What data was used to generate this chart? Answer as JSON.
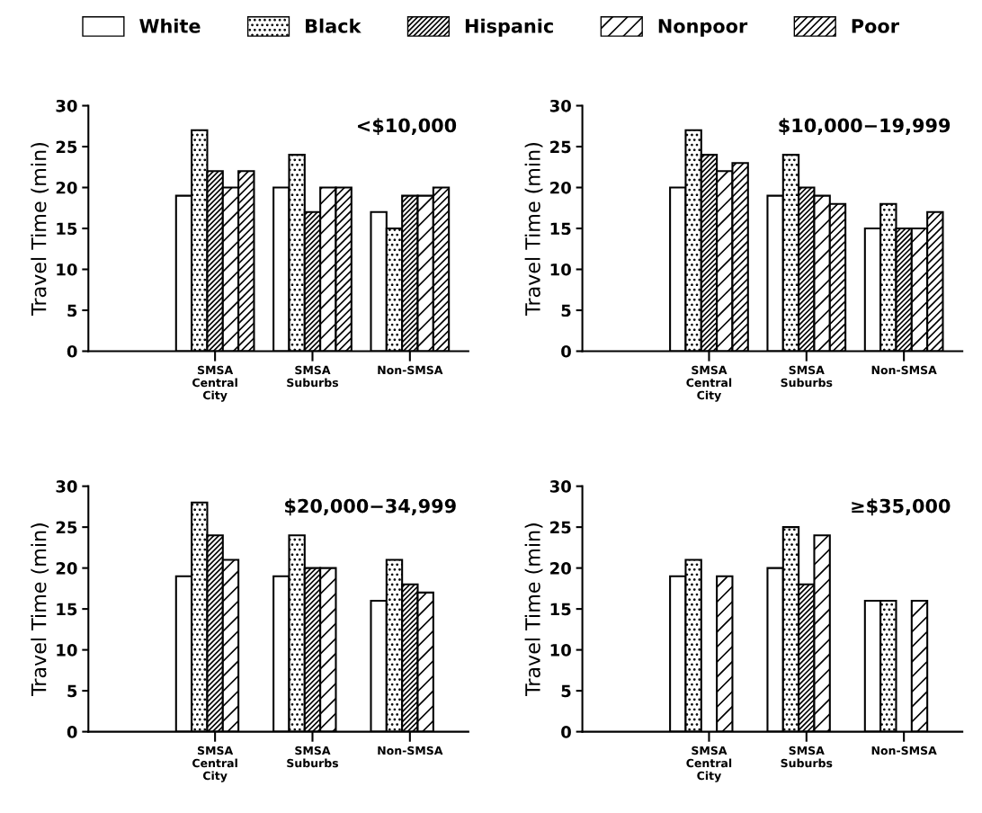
{
  "chart_data": [
    {
      "type": "bar",
      "title": "<$10,000",
      "ylabel": "Travel Time (min)",
      "categories": [
        "SMSA\nCentral\nCity",
        "SMSA\nSuburbs",
        "Non-SMSA"
      ],
      "ylim": [
        0,
        30
      ],
      "yticks": [
        0,
        5,
        10,
        15,
        20,
        25,
        30
      ],
      "legend": "top",
      "series": [
        {
          "name": "White",
          "color": "#ffffff",
          "values": [
            19,
            20,
            17
          ]
        },
        {
          "name": "Black",
          "color": "#000000",
          "values": [
            27,
            24,
            15
          ]
        },
        {
          "name": "Hispanic",
          "color": "#000000",
          "values": [
            22,
            17,
            19
          ]
        },
        {
          "name": "Nonpoor",
          "color": "#000000",
          "values": [
            20,
            20,
            19
          ]
        },
        {
          "name": "Poor",
          "color": "#000000",
          "values": [
            22,
            20,
            20
          ]
        }
      ]
    },
    {
      "type": "bar",
      "title": "$20,000−34,999",
      "ylabel": "Travel Time (min)",
      "categories": [
        "SMSA\nCentral\nCity",
        "SMSA\nSuburbs",
        "Non-SMSA"
      ],
      "ylim": [
        0,
        30
      ],
      "yticks": [
        0,
        5,
        10,
        15,
        20,
        25,
        30
      ],
      "series": [
        {
          "color": "#ffffff",
          "values": [
            19,
            19,
            16
          ]
        },
        {
          "color": "#000000",
          "values": [
            28,
            24,
            21
          ]
        },
        {
          "color": "#000000",
          "values": [
            24,
            20,
            18
          ]
        },
        {
          "color": "#000000",
          "values": [
            21,
            20,
            17
          ]
        }
      ]
    },
    {
      "type": "bar",
      "title": "$10,000−19,999",
      "ylabel": "Travel Time (min)",
      "categories": [
        "SMSA\nCentral\nCity",
        "SMSA\nSuburbs",
        "Non-SMSA"
      ],
      "ylim": [
        0,
        30
      ],
      "yticks": [
        0,
        5,
        10,
        15,
        20,
        25,
        30
      ],
      "series": [
        {
          "color": "#ffffff",
          "values": [
            20,
            19,
            15
          ]
        },
        {
          "color": "#000000",
          "values": [
            27,
            24,
            18
          ]
        },
        {
          "color": "#000000",
          "values": [
            24,
            20,
            15
          ]
        },
        {
          "color": "#000000",
          "values": [
            22,
            19,
            15
          ]
        },
        {
          "color": "#000000",
          "values": [
            23,
            18,
            17
          ]
        }
      ]
    },
    {
      "type": "bar",
      "title": "≥$35,000",
      "ylabel": "Travel Time (min)",
      "categories": [
        "SMSA\nCentral\nCity",
        "SMSA\nSuburbs",
        "Non-SMSA"
      ],
      "ylim": [
        0,
        30
      ],
      "yticks": [
        0,
        5,
        10,
        15,
        20,
        25,
        30
      ],
      "series": [
        {
          "color": "#ffffff",
          "values": [
            19,
            20,
            16
          ]
        },
        {
          "color": "#000000",
          "values": [
            21,
            25,
            16
          ]
        },
        {
          "color": "#000000",
          "values": [
            null,
            18,
            null
          ]
        },
        {
          "color": "#000000",
          "values": [
            19,
            24,
            16
          ]
        }
      ]
    }
  ]
}
